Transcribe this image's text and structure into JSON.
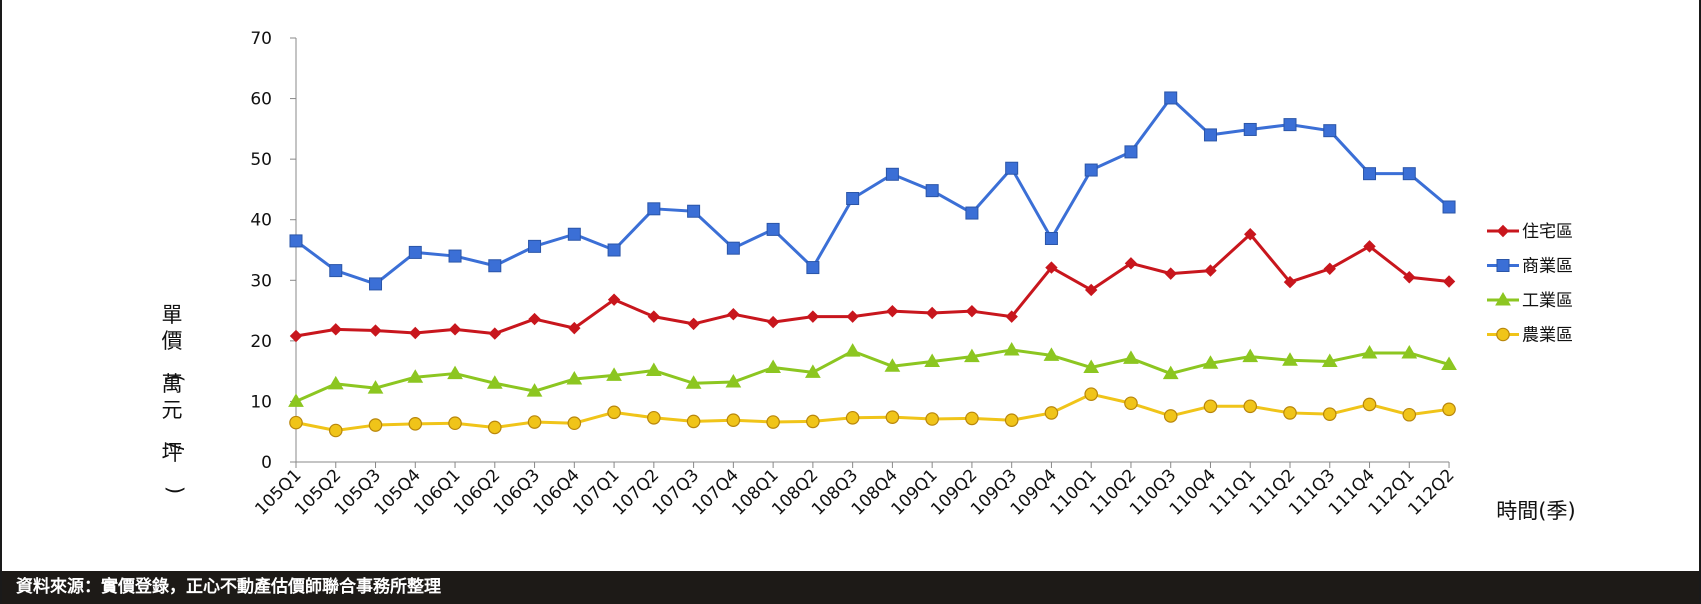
{
  "source_note": "資料來源：實價登錄，正心不動產估價師聯合事務所整理",
  "chart_data": {
    "type": "line",
    "xlabel": "時間(季)",
    "ylabel": "單價(萬元/坪)",
    "ylim": [
      0,
      70
    ],
    "yticks": [
      0,
      10,
      20,
      30,
      40,
      50,
      60,
      70
    ],
    "grid": false,
    "legend_position": "right",
    "categories": [
      "105Q1",
      "105Q2",
      "105Q3",
      "105Q4",
      "106Q1",
      "106Q2",
      "106Q3",
      "106Q4",
      "107Q1",
      "107Q2",
      "107Q3",
      "107Q4",
      "108Q1",
      "108Q2",
      "108Q3",
      "108Q4",
      "109Q1",
      "109Q2",
      "109Q3",
      "109Q4",
      "110Q1",
      "110Q2",
      "110Q3",
      "110Q4",
      "111Q1",
      "111Q2",
      "111Q3",
      "111Q4",
      "112Q1",
      "112Q2"
    ],
    "series": [
      {
        "name": "住宅區",
        "color": "#c8161d",
        "marker": "diamond",
        "values": [
          20.8,
          21.9,
          21.7,
          21.3,
          21.9,
          21.2,
          23.6,
          22.1,
          26.8,
          24.0,
          22.8,
          24.4,
          23.1,
          24.0,
          24.0,
          24.9,
          24.6,
          24.9,
          24.0,
          32.1,
          28.4,
          32.8,
          31.1,
          31.6,
          37.6,
          29.7,
          31.9,
          35.6,
          30.5,
          29.8
        ]
      },
      {
        "name": "商業區",
        "color": "#3b6fd6",
        "marker": "square",
        "values": [
          36.5,
          31.6,
          29.4,
          34.6,
          34.0,
          32.4,
          35.6,
          37.6,
          35.0,
          41.8,
          41.4,
          35.3,
          38.4,
          32.1,
          43.5,
          47.5,
          44.8,
          41.1,
          48.5,
          36.9,
          48.2,
          51.2,
          60.1,
          54.0,
          54.9,
          55.7,
          54.7,
          47.6,
          47.6,
          42.1
        ]
      },
      {
        "name": "工業區",
        "color": "#8cc621",
        "marker": "triangle",
        "values": [
          10.0,
          12.9,
          12.2,
          14.0,
          14.6,
          13.0,
          11.7,
          13.7,
          14.3,
          15.1,
          13.0,
          13.2,
          15.6,
          14.8,
          18.3,
          15.8,
          16.6,
          17.4,
          18.5,
          17.6,
          15.6,
          17.1,
          14.6,
          16.3,
          17.4,
          16.8,
          16.6,
          18.0,
          18.0,
          16.1
        ]
      },
      {
        "name": "農業區",
        "color": "#f0c419",
        "marker": "circle",
        "values": [
          6.5,
          5.2,
          6.1,
          6.3,
          6.4,
          5.7,
          6.6,
          6.4,
          8.2,
          7.3,
          6.7,
          6.9,
          6.6,
          6.7,
          7.3,
          7.4,
          7.1,
          7.2,
          6.9,
          8.1,
          11.2,
          9.7,
          7.6,
          9.2,
          9.2,
          8.1,
          7.9,
          9.5,
          7.8,
          8.7
        ]
      }
    ]
  }
}
